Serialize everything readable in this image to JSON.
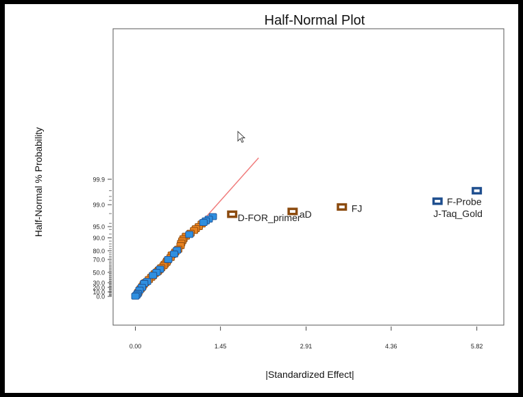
{
  "chart_data": {
    "type": "scatter",
    "title": "Half-Normal Plot",
    "xlabel": "|Standardized Effect|",
    "ylabel": "Half-Normal % Probability",
    "x_ticks": [
      "0.00",
      "1.45",
      "2.91",
      "4.36",
      "5.82"
    ],
    "x_tick_values": [
      0.0,
      1.45,
      2.91,
      4.36,
      5.82
    ],
    "xlim": [
      -0.38,
      6.28
    ],
    "y_scale": "half-normal probability",
    "y_ticks": [
      "99.9",
      "99.0",
      "95.0",
      "90.0",
      "80.0",
      "70.0",
      "50.0",
      "30.0",
      "20.0",
      "10.0",
      "0.0"
    ],
    "y_tick_values": [
      99.9,
      99.0,
      95.0,
      90.0,
      80.0,
      70.0,
      50.0,
      30.0,
      20.0,
      10.0,
      0.0
    ],
    "grid": false,
    "colors": {
      "positive_effect": "#e8811e",
      "negative_effect": "#2f8fe0",
      "positive_border": "#8b4a0e",
      "negative_border": "#1f4f8f",
      "reference_line": "#f07b7b"
    },
    "reference_line": {
      "x": [
        0.0,
        2.1
      ],
      "y": [
        0.0,
        99.99
      ]
    },
    "series": [
      {
        "name": "",
        "role": "labeled-positive",
        "points": [
          {
            "x": 1.65,
            "y": 97.9,
            "label": "D-FOR_primer"
          },
          {
            "x": 2.68,
            "y": 98.3,
            "label": "aD"
          },
          {
            "x": 3.52,
            "y": 98.8,
            "label": "FJ"
          }
        ]
      },
      {
        "name": "",
        "role": "labeled-negative",
        "points": [
          {
            "x": 5.15,
            "y": 99.25,
            "label": "J-Taq_Gold"
          },
          {
            "x": 5.82,
            "y": 99.7,
            "label": "F-Probe"
          }
        ]
      },
      {
        "name": "",
        "role": "error-estimates-orange",
        "points": [
          {
            "x": 1.13,
            "y": 95.8
          },
          {
            "x": 1.08,
            "y": 95.0
          },
          {
            "x": 1.03,
            "y": 94.3
          },
          {
            "x": 1.0,
            "y": 93.6
          },
          {
            "x": 0.94,
            "y": 92.4
          },
          {
            "x": 0.86,
            "y": 90.9
          },
          {
            "x": 0.82,
            "y": 89.5
          },
          {
            "x": 0.8,
            "y": 88.2
          },
          {
            "x": 0.78,
            "y": 86.5
          },
          {
            "x": 0.77,
            "y": 84.6
          },
          {
            "x": 0.73,
            "y": 81.5
          },
          {
            "x": 0.68,
            "y": 78.7
          },
          {
            "x": 0.62,
            "y": 75.6
          },
          {
            "x": 0.6,
            "y": 72.5
          },
          {
            "x": 0.54,
            "y": 68.0
          },
          {
            "x": 0.53,
            "y": 66.0
          },
          {
            "x": 0.5,
            "y": 63.5
          },
          {
            "x": 0.48,
            "y": 61.0
          },
          {
            "x": 0.44,
            "y": 57.8
          },
          {
            "x": 0.4,
            "y": 54.0
          },
          {
            "x": 0.38,
            "y": 51.5
          },
          {
            "x": 0.33,
            "y": 47.7
          },
          {
            "x": 0.3,
            "y": 43.8
          },
          {
            "x": 0.27,
            "y": 40.8
          },
          {
            "x": 0.23,
            "y": 36.5
          },
          {
            "x": 0.17,
            "y": 30.0
          },
          {
            "x": 0.14,
            "y": 26.2
          },
          {
            "x": 0.12,
            "y": 22.0
          },
          {
            "x": 0.09,
            "y": 17.0
          },
          {
            "x": 0.05,
            "y": 9.0
          }
        ]
      },
      {
        "name": "",
        "role": "error-estimates-blue",
        "points": [
          {
            "x": 1.32,
            "y": 97.5
          },
          {
            "x": 1.25,
            "y": 97.0
          },
          {
            "x": 1.2,
            "y": 96.6
          },
          {
            "x": 1.16,
            "y": 96.2
          },
          {
            "x": 0.92,
            "y": 91.8
          },
          {
            "x": 0.71,
            "y": 80.5
          },
          {
            "x": 0.66,
            "y": 76.6
          },
          {
            "x": 0.56,
            "y": 70.0
          },
          {
            "x": 0.42,
            "y": 55.5
          },
          {
            "x": 0.36,
            "y": 50.0
          },
          {
            "x": 0.3,
            "y": 44.5
          },
          {
            "x": 0.2,
            "y": 32.5
          },
          {
            "x": 0.15,
            "y": 28.5
          },
          {
            "x": 0.11,
            "y": 20.0
          },
          {
            "x": 0.07,
            "y": 14.0
          },
          {
            "x": 0.04,
            "y": 6.5
          },
          {
            "x": 0.02,
            "y": 3.0
          },
          {
            "x": 0.0,
            "y": 0.5
          }
        ]
      }
    ]
  }
}
